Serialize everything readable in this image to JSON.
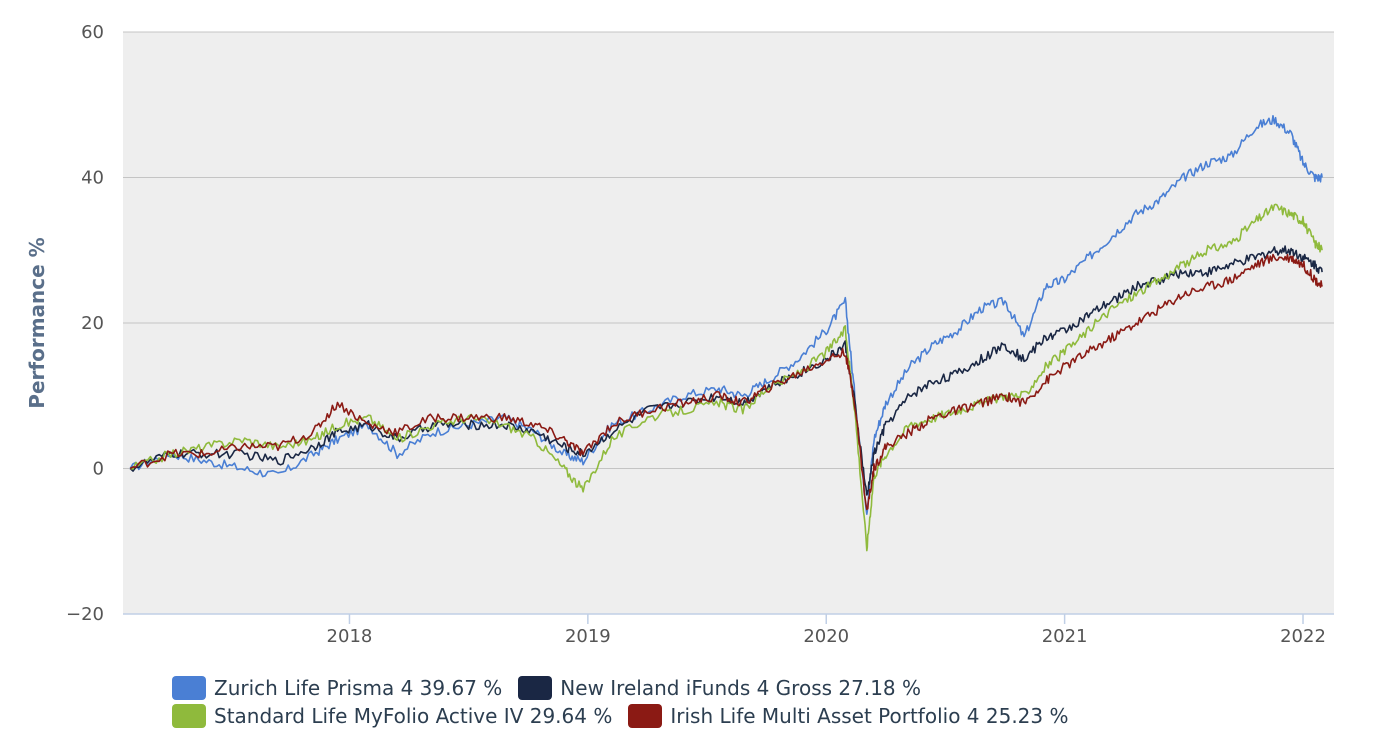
{
  "chart_data": {
    "type": "line",
    "title": "",
    "xlabel": "",
    "ylabel": "Performance %",
    "ylim": [
      -20,
      60
    ],
    "yticks": [
      -20,
      0,
      20,
      40,
      60
    ],
    "ytick_labels": [
      "−20",
      "0",
      "20",
      "40",
      "60"
    ],
    "xlim": [
      2017.05,
      2022.13
    ],
    "xticks": [
      2018,
      2019,
      2020,
      2021,
      2022
    ],
    "xtick_labels": [
      "2018",
      "2019",
      "2020",
      "2021",
      "2022"
    ],
    "grid": true,
    "legend_position": "bottom",
    "x": [
      2017.08,
      2017.25,
      2017.4,
      2017.55,
      2017.7,
      2017.85,
      2017.95,
      2018.08,
      2018.2,
      2018.35,
      2018.5,
      2018.65,
      2018.78,
      2018.9,
      2018.98,
      2019.1,
      2019.25,
      2019.4,
      2019.55,
      2019.65,
      2019.75,
      2019.88,
      2020.0,
      2020.08,
      2020.12,
      2020.17,
      2020.2,
      2020.25,
      2020.35,
      2020.45,
      2020.55,
      2020.65,
      2020.75,
      2020.83,
      2020.92,
      2021.0,
      2021.1,
      2021.2,
      2021.3,
      2021.4,
      2021.5,
      2021.6,
      2021.7,
      2021.8,
      2021.88,
      2021.95,
      2022.0,
      2022.05,
      2022.08
    ],
    "series": [
      {
        "name": "Zurich Life Prisma 4",
        "color": "#4a7fd4",
        "legend_label": "Zurich Life Prisma 4 39.67 %",
        "values": [
          0,
          2,
          1,
          0,
          -1,
          2,
          4,
          6,
          2,
          5,
          6,
          7,
          5,
          2,
          1,
          6,
          8,
          10,
          11,
          10,
          12,
          15,
          19,
          23,
          10,
          -6,
          4,
          9,
          14,
          17,
          19,
          22,
          23,
          18,
          25,
          26,
          29,
          32,
          35,
          37,
          40,
          42,
          43,
          47,
          48,
          46,
          42,
          40,
          40
        ]
      },
      {
        "name": "New Ireland iFunds 4 Gross",
        "color": "#1a2744",
        "legend_label": "New Ireland iFunds 4 Gross 27.18 %",
        "values": [
          0,
          2,
          2,
          2,
          1,
          3,
          5,
          6,
          4,
          6,
          6,
          6,
          5,
          3,
          2,
          5,
          8,
          9,
          10,
          9,
          11,
          13,
          15,
          17,
          9,
          -4,
          2,
          6,
          10,
          12,
          13,
          15,
          17,
          15,
          18,
          19,
          21,
          23,
          25,
          26,
          27,
          27,
          28,
          29,
          30,
          30,
          29,
          28,
          27
        ]
      },
      {
        "name": "Standard Life MyFolio Active IV",
        "color": "#8fba3c",
        "legend_label": "Standard Life MyFolio Active IV 29.64 %",
        "values": [
          0,
          2,
          3,
          4,
          3,
          4,
          6,
          7,
          4,
          6,
          7,
          6,
          4,
          0,
          -3,
          4,
          7,
          8,
          9,
          8,
          11,
          13,
          16,
          19,
          8,
          -11,
          -1,
          2,
          6,
          7,
          8,
          9,
          10,
          10,
          14,
          16,
          19,
          22,
          24,
          26,
          28,
          30,
          31,
          34,
          36,
          35,
          34,
          31,
          30
        ]
      },
      {
        "name": "Irish Life Multi Asset Portfolio 4",
        "color": "#8b1a14",
        "legend_label": "Irish Life Multi Asset Portfolio 4 25.23 %",
        "values": [
          0,
          2,
          2,
          3,
          3,
          5,
          9,
          6,
          5,
          7,
          7,
          7,
          6,
          4,
          2,
          6,
          8,
          9,
          10,
          9,
          11,
          13,
          15,
          16,
          9,
          -6,
          0,
          3,
          5,
          7,
          8,
          9,
          10,
          9,
          12,
          14,
          16,
          18,
          20,
          22,
          24,
          25,
          26,
          28,
          29,
          29,
          28,
          26,
          25
        ]
      }
    ]
  },
  "legend": [
    {
      "label": "Zurich Life Prisma 4 39.67 %",
      "color": "#4a7fd4"
    },
    {
      "label": "New Ireland iFunds 4 Gross 27.18 %",
      "color": "#1a2744"
    },
    {
      "label": "Standard Life MyFolio Active IV 29.64 %",
      "color": "#8fba3c"
    },
    {
      "label": "Irish Life Multi Asset Portfolio 4 25.23 %",
      "color": "#8b1a14"
    }
  ]
}
